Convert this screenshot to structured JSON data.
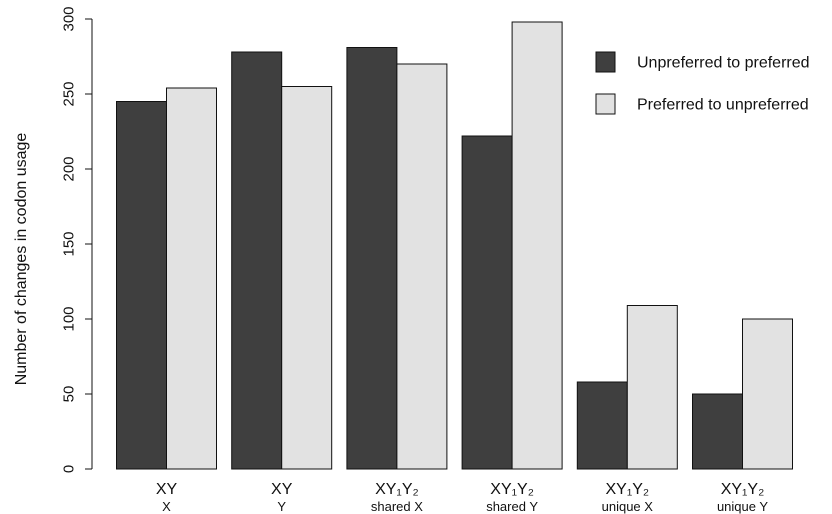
{
  "chart_data": {
    "type": "bar",
    "ylabel": "Number of changes in codon usage",
    "ylim": [
      0,
      300
    ],
    "yticks": [
      0,
      50,
      100,
      150,
      200,
      250,
      300
    ],
    "grid": false,
    "legend_position": "top-right",
    "categories": [
      {
        "main": "XY",
        "sub": "X"
      },
      {
        "main": "XY",
        "sub": "Y"
      },
      {
        "main": "XY₁Y₂",
        "sub": "shared X"
      },
      {
        "main": "XY₁Y₂",
        "sub": "shared Y"
      },
      {
        "main": "XY₁Y₂",
        "sub": "unique X"
      },
      {
        "main": "XY₁Y₂",
        "sub": "unique Y"
      }
    ],
    "series": [
      {
        "name": "Unpreferred to preferred",
        "color": "#3f3f3f",
        "values": [
          245,
          278,
          281,
          222,
          58,
          50
        ]
      },
      {
        "name": "Preferred to unpreferred",
        "color": "#e2e2e2",
        "values": [
          254,
          255,
          270,
          298,
          109,
          100
        ]
      }
    ]
  }
}
